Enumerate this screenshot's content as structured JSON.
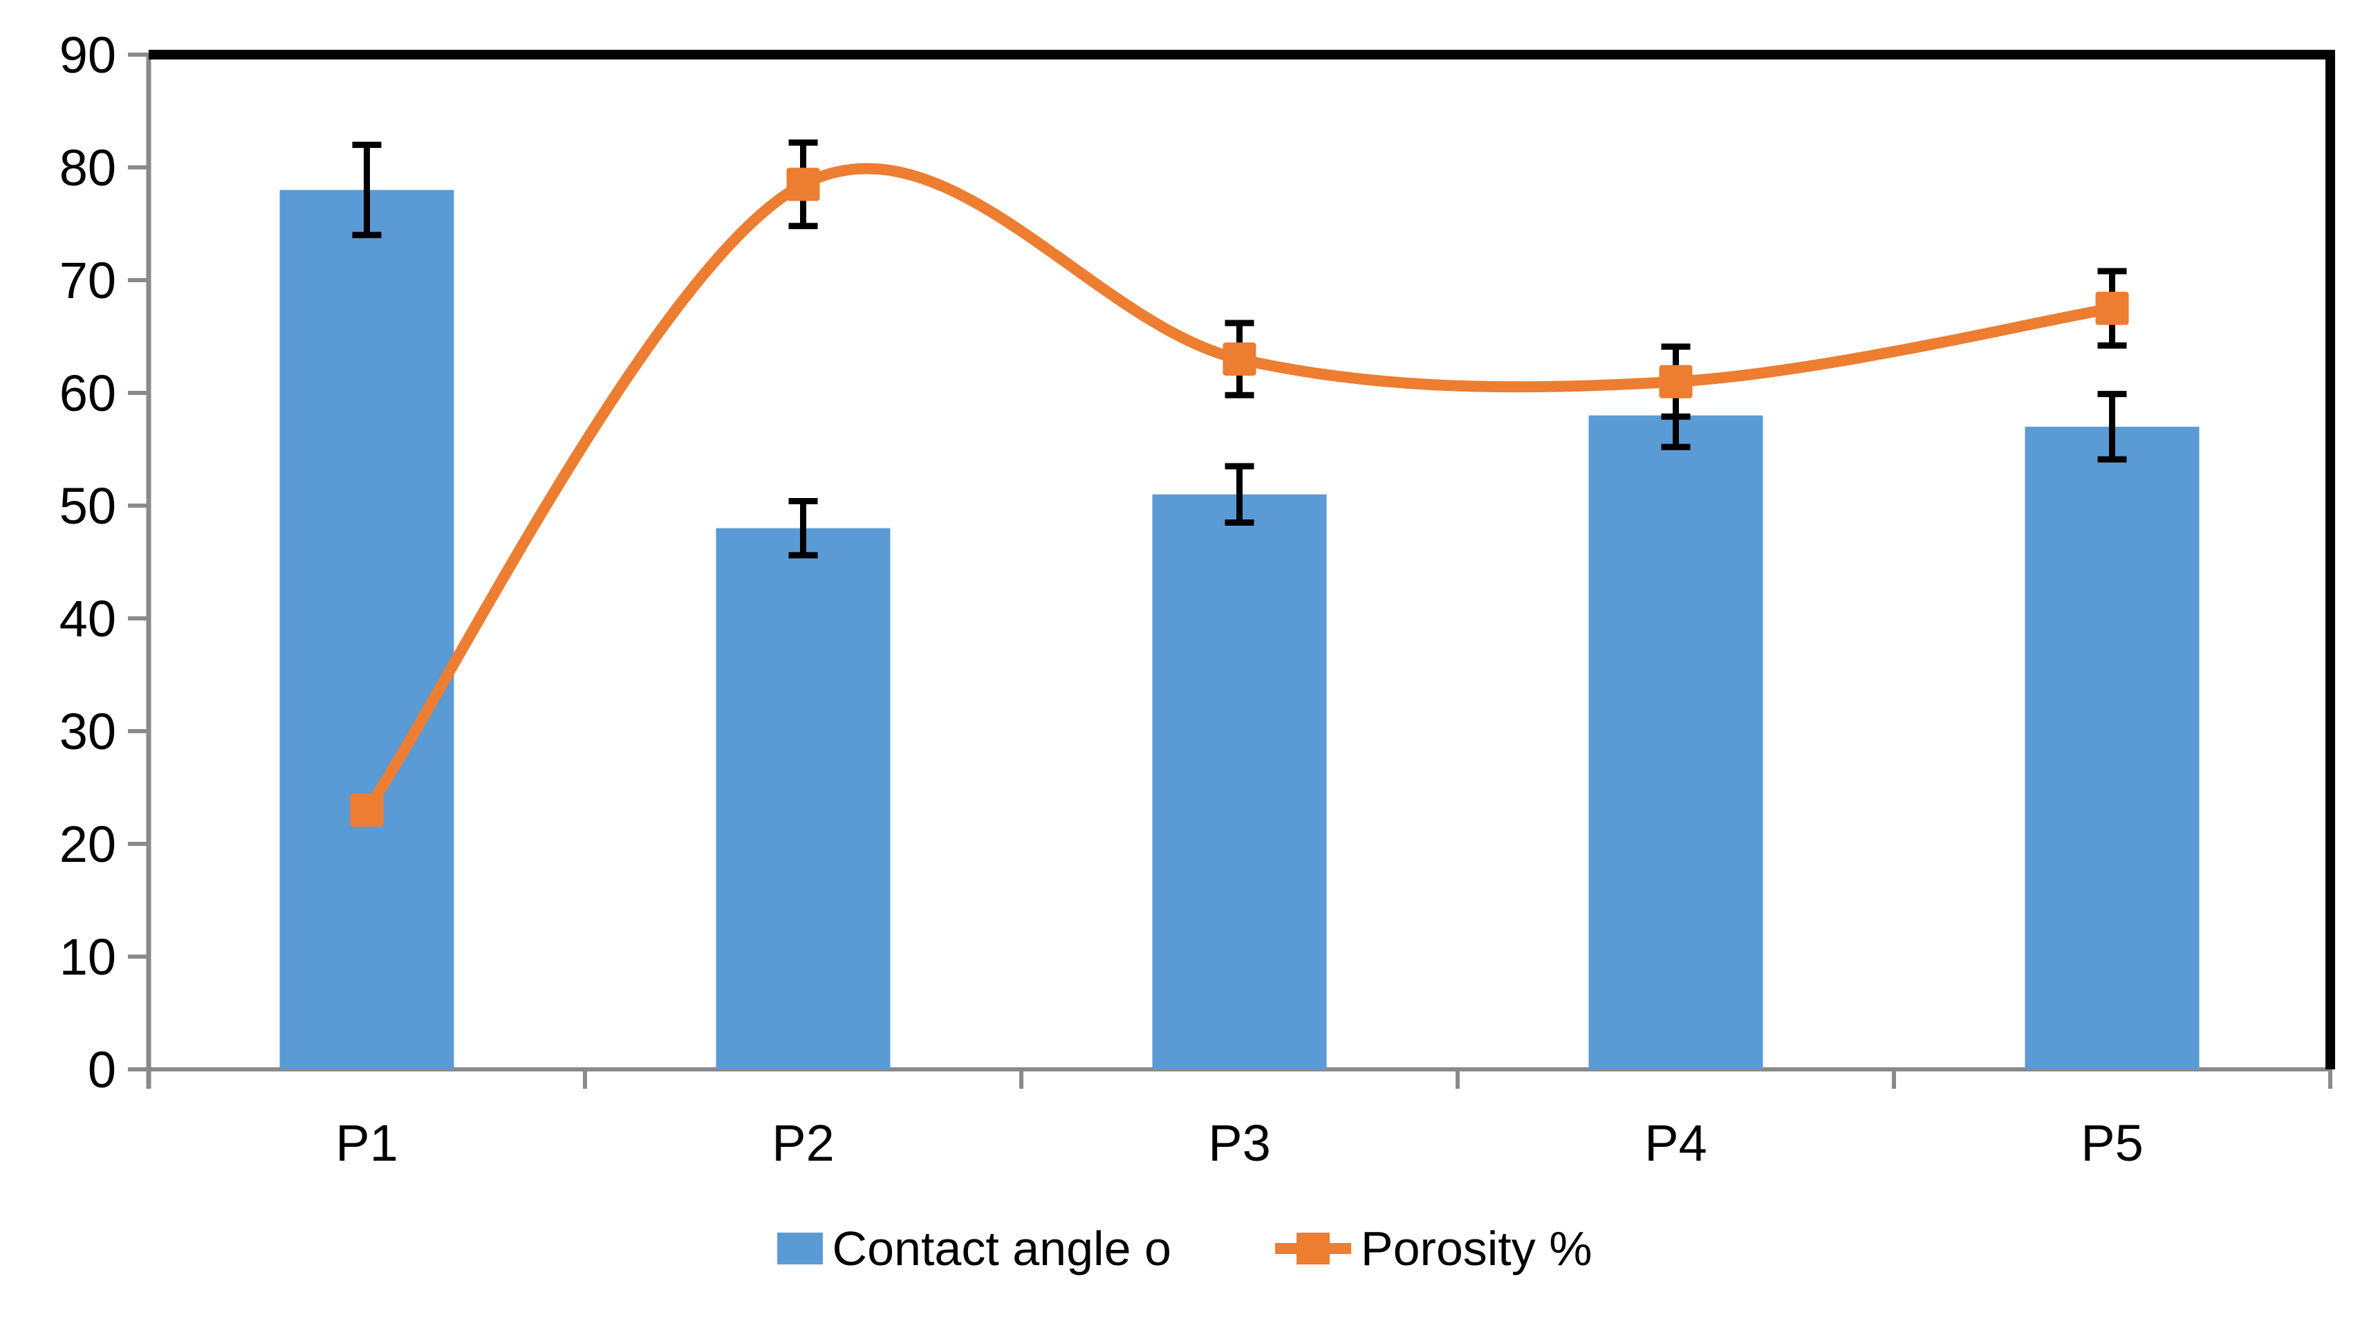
{
  "chart_data": {
    "type": "bar",
    "subtype": "bar-line-combo",
    "categories": [
      "P1",
      "P2",
      "P3",
      "P4",
      "P5"
    ],
    "series": [
      {
        "name": "Contact angle o",
        "type": "bar",
        "color": "#5B9BD5",
        "values": [
          78,
          48,
          51,
          58,
          57
        ],
        "error_plus_minus": [
          4,
          2.4,
          2.5,
          2.8,
          2.9
        ]
      },
      {
        "name": "Porosity %",
        "type": "line",
        "smooth": true,
        "marker": "square",
        "color": "#ED7D31",
        "values": [
          23,
          78.5,
          63,
          61,
          67.5
        ],
        "error_plus_minus": [
          0,
          3.7,
          3.2,
          3.1,
          3.3
        ]
      }
    ],
    "title": "",
    "xlabel": "",
    "ylabel": "",
    "ylim": [
      0,
      90
    ],
    "ytick_step": 10,
    "ytick_labels": [
      "0",
      "10",
      "20",
      "30",
      "40",
      "50",
      "60",
      "70",
      "80",
      "90"
    ],
    "grid": false,
    "legend_position": "bottom",
    "axis_color": "#8a8a8a",
    "tick_label_color": "#000000",
    "error_bar_color": "#000000",
    "plot_border_top_right_color": "#000000"
  },
  "legend": {
    "items": [
      {
        "label": "Contact angle o"
      },
      {
        "label": "Porosity %"
      }
    ]
  }
}
